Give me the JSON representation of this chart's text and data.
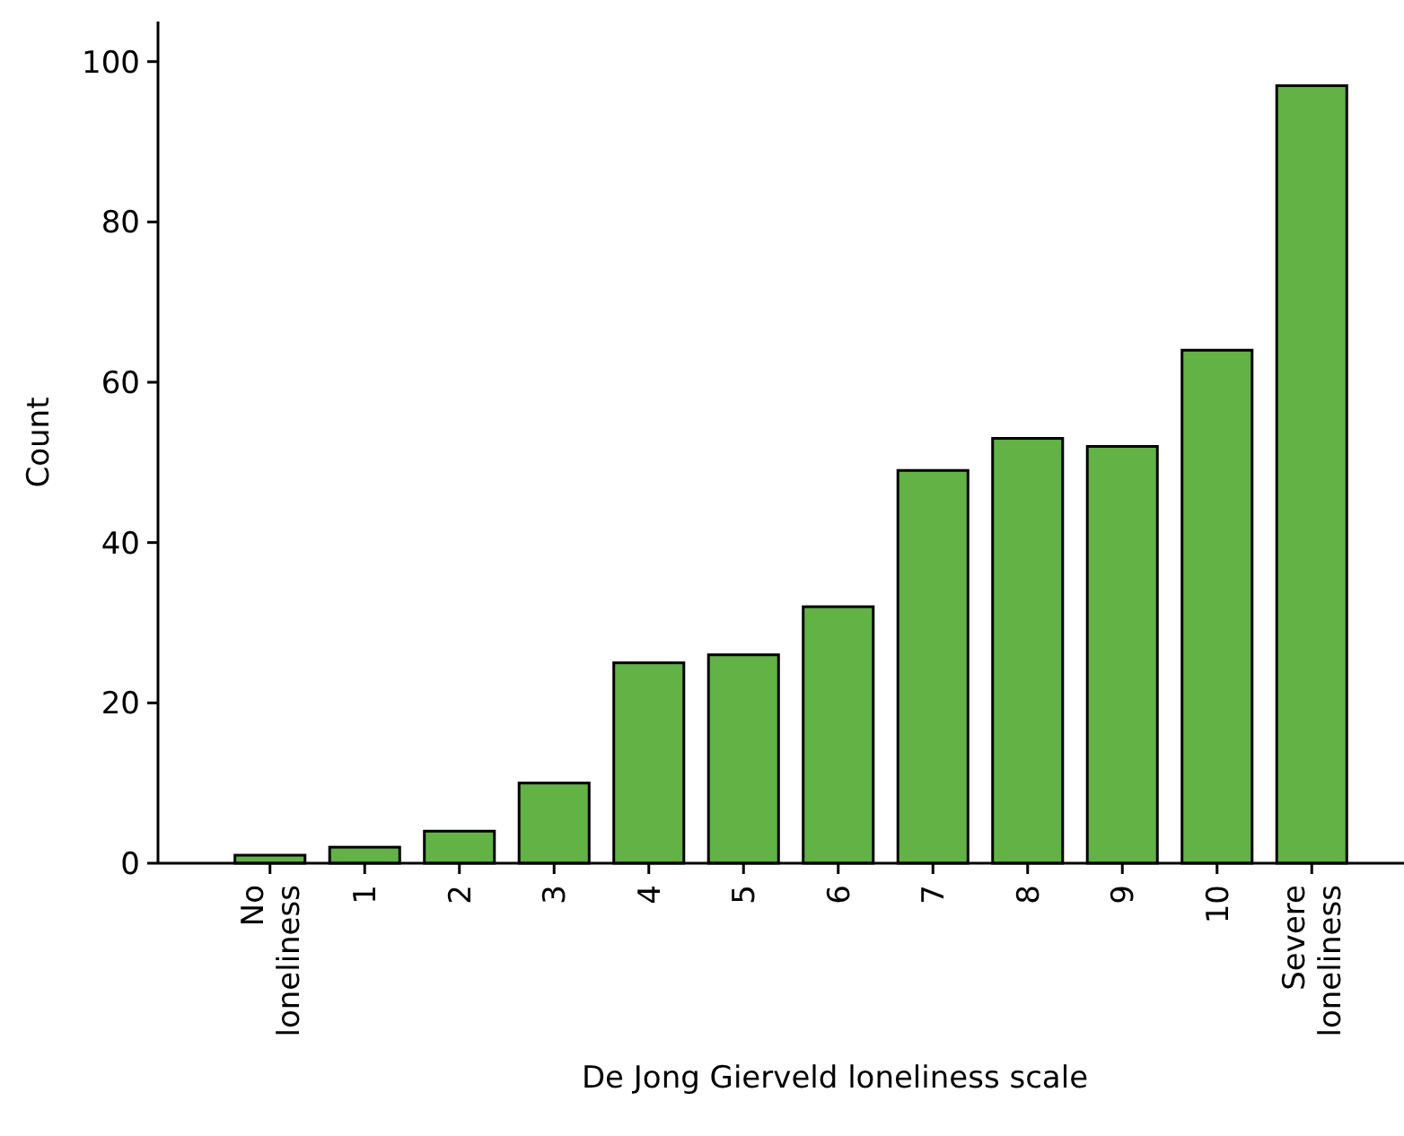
{
  "chart_data": {
    "type": "bar",
    "xlabel": "De Jong Gierveld loneliness scale",
    "ylabel": "Count",
    "categories": [
      "No loneliness",
      "1",
      "2",
      "3",
      "4",
      "5",
      "6",
      "7",
      "8",
      "9",
      "10",
      "Severe loneliness"
    ],
    "values": [
      1,
      2,
      4,
      10,
      25,
      26,
      32,
      49,
      53,
      52,
      64,
      97
    ],
    "color": "#62b246",
    "ylim": [
      0,
      105
    ],
    "yticks": [
      0,
      20,
      40,
      60,
      80,
      100
    ],
    "grid": false
  }
}
